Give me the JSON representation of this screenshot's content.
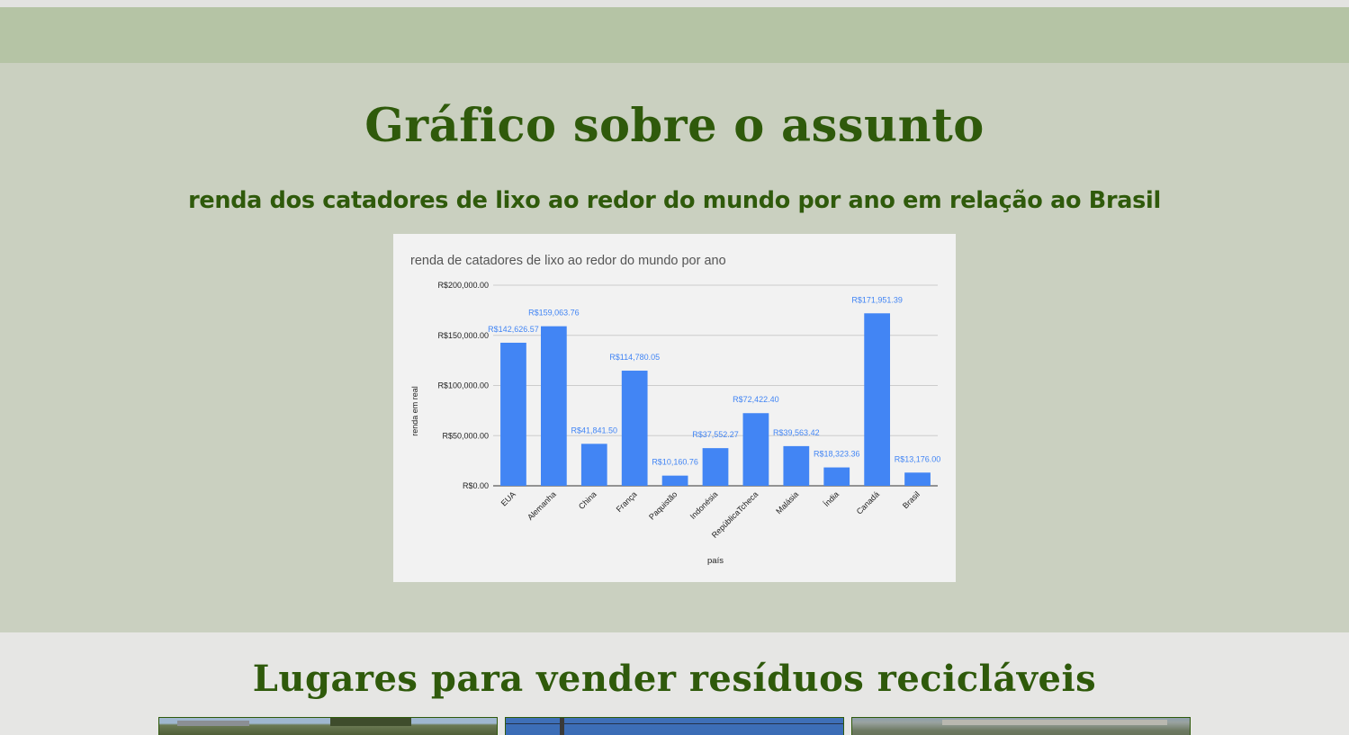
{
  "chart_section": {
    "title": "Gráfico sobre o assunto",
    "subtitle": "renda dos catadores de lixo ao redor do mundo por ano em relação ao Brasil"
  },
  "chart_data": {
    "type": "bar",
    "title": "renda de catadores de lixo ao redor do mundo por ano",
    "xlabel": "país",
    "ylabel": "renda em real",
    "categories": [
      "EUA",
      "Alemanha",
      "China",
      "França",
      "Paquistão",
      "Indonésia",
      "RepúblicaTcheca",
      "Malásia",
      "Índia",
      "Canadá",
      "Brasil"
    ],
    "values": [
      142626.57,
      159063.76,
      41841.5,
      114780.05,
      10160.76,
      37552.27,
      72422.4,
      39563.42,
      18323.36,
      171951.39,
      13176.0
    ],
    "value_labels": [
      "R$142,626.57",
      "R$159,063.76",
      "R$41,841.50",
      "R$114,780.05",
      "R$10,160.76",
      "R$37,552.27",
      "R$72,422.40",
      "R$39,563.42",
      "R$18,323.36",
      "R$171,951.39",
      "R$13,176.00"
    ],
    "y_ticks": [
      0,
      50000,
      100000,
      150000,
      200000
    ],
    "y_tick_labels": [
      "R$0.00",
      "R$50,000.00",
      "R$100,000.00",
      "R$150,000.00",
      "R$200,000.00"
    ],
    "ylim": [
      0,
      200000
    ],
    "grid": true,
    "legend": "none",
    "colors": {
      "bar": "#4285f4",
      "grid": "#cccccc",
      "label": "#4285f4",
      "axis_text": "#222222",
      "title_text": "#555555"
    }
  },
  "places_section": {
    "title": "Lugares para vender resíduos recicláveis"
  },
  "colors": {
    "heading": "#2f5a0b",
    "band": "#b5c4a5",
    "chart_section_bg": "#cad0c0",
    "page_bg": "#e6e6e4"
  }
}
